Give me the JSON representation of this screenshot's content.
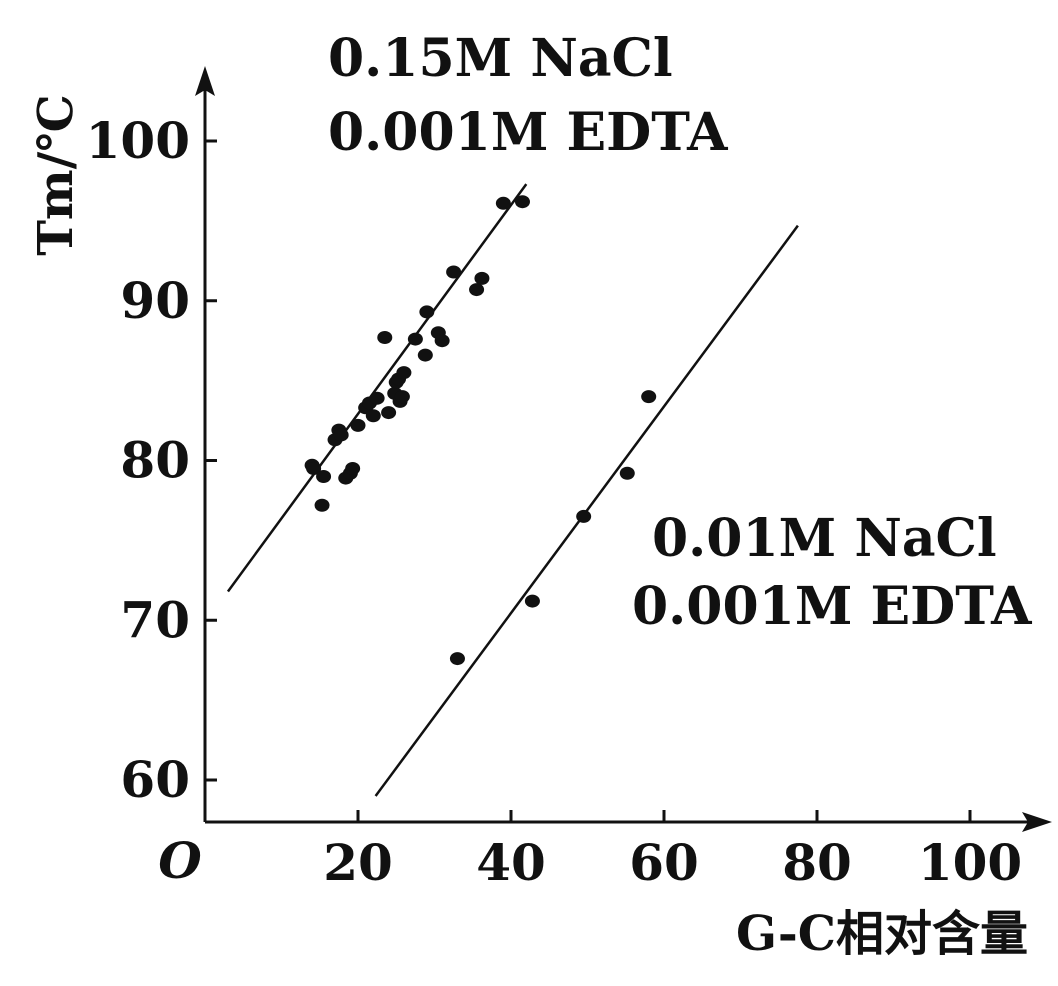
{
  "chart_data": {
    "type": "scatter",
    "title": "",
    "xlabel": "G-C相对含量",
    "ylabel": "Tm/℃",
    "origin_label": "O",
    "xlim": [
      0,
      105
    ],
    "ylim": [
      57,
      102
    ],
    "x_ticks": [
      20,
      40,
      60,
      80,
      100
    ],
    "y_ticks": [
      60,
      70,
      80,
      90,
      100
    ],
    "grid": false,
    "annotations": [
      {
        "lines": [
          "0.15M NaCl",
          "0.001M EDTA"
        ]
      },
      {
        "lines": [
          "0.01M NaCl",
          "0.001M EDTA"
        ]
      }
    ],
    "series": [
      {
        "points": [
          [
            14.0,
            79.7
          ],
          [
            14.2,
            79.5
          ],
          [
            15.5,
            79.0
          ],
          [
            15.3,
            77.2
          ],
          [
            17.0,
            81.3
          ],
          [
            17.5,
            81.9
          ],
          [
            17.8,
            81.6
          ],
          [
            18.4,
            78.9
          ],
          [
            19.0,
            79.2
          ],
          [
            19.3,
            79.5
          ],
          [
            20.0,
            82.2
          ],
          [
            21.0,
            83.3
          ],
          [
            21.5,
            83.6
          ],
          [
            22.0,
            82.8
          ],
          [
            22.5,
            83.9
          ],
          [
            23.5,
            87.7
          ],
          [
            24.0,
            83.0
          ],
          [
            24.8,
            84.2
          ],
          [
            25.0,
            84.9
          ],
          [
            25.3,
            85.1
          ],
          [
            25.5,
            83.7
          ],
          [
            25.8,
            84.0
          ],
          [
            26.0,
            85.5
          ],
          [
            27.5,
            87.6
          ],
          [
            28.8,
            86.6
          ],
          [
            29.0,
            89.3
          ],
          [
            30.5,
            88.0
          ],
          [
            31.0,
            87.5
          ],
          [
            32.5,
            91.8
          ],
          [
            35.5,
            90.7
          ],
          [
            36.2,
            91.4
          ],
          [
            39.0,
            96.1
          ],
          [
            41.5,
            96.2
          ]
        ],
        "fit_line": [
          [
            3.0,
            71.8
          ],
          [
            42.0,
            97.3
          ]
        ]
      },
      {
        "points": [
          [
            33.0,
            67.6
          ],
          [
            42.8,
            71.2
          ],
          [
            49.5,
            76.5
          ],
          [
            55.2,
            79.2
          ],
          [
            58.0,
            84.0
          ]
        ],
        "fit_line": [
          [
            22.3,
            59.0
          ],
          [
            77.5,
            94.7
          ]
        ]
      }
    ]
  }
}
